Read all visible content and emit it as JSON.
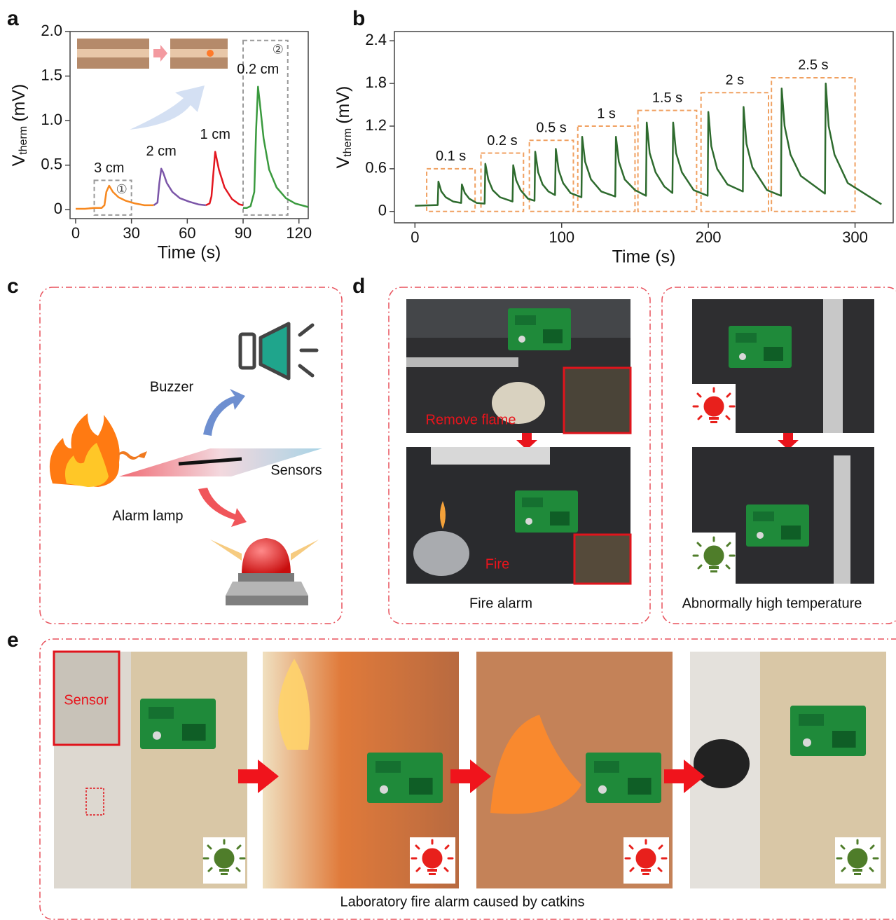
{
  "panel_labels": [
    "a",
    "b",
    "c",
    "d",
    "e"
  ],
  "chart_data": [
    {
      "type": "line",
      "xlabel": "Time (s)",
      "ylabel": {
        "main": "V",
        "sub": "therm",
        "unit": "(mV)"
      },
      "xlim": [
        -3,
        125
      ],
      "ylim": [
        -0.1,
        2.0
      ],
      "xticks": [
        0,
        30,
        60,
        90,
        120
      ],
      "yticks": [
        0,
        0.5,
        {
          "value": 1,
          "label": "1.0"
        },
        1.5,
        {
          "value": 2,
          "label": "2.0"
        }
      ],
      "series": [
        {
          "name": "3 cm",
          "color": "#f7881f",
          "x": [
            0,
            5,
            10,
            14,
            15.5,
            16.5,
            18,
            20,
            23,
            27,
            32,
            37,
            42
          ],
          "values": [
            0.01,
            0.01,
            0.02,
            0.02,
            0.05,
            0.2,
            0.27,
            0.2,
            0.14,
            0.1,
            0.07,
            0.05,
            0.05
          ]
        },
        {
          "name": "2 cm",
          "color": "#7b55a8",
          "x": [
            42,
            44,
            45,
            46,
            47,
            49,
            52,
            56,
            61,
            66,
            70
          ],
          "values": [
            0.05,
            0.08,
            0.3,
            0.46,
            0.42,
            0.3,
            0.2,
            0.13,
            0.09,
            0.06,
            0.05
          ]
        },
        {
          "name": "1 cm",
          "color": "#e3161f",
          "x": [
            70,
            72,
            73,
            74,
            75,
            77,
            80,
            84,
            88,
            90
          ],
          "values": [
            0.05,
            0.07,
            0.15,
            0.4,
            0.65,
            0.45,
            0.25,
            0.12,
            0.06,
            0.05
          ]
        },
        {
          "name": "0.2 cm",
          "color": "#3a9a3e",
          "x": [
            90,
            92,
            94,
            96,
            97,
            98,
            99,
            101,
            104,
            108,
            113,
            118,
            125
          ],
          "values": [
            0.02,
            0.02,
            0.04,
            0.2,
            0.9,
            1.38,
            1.2,
            0.8,
            0.45,
            0.25,
            0.13,
            0.07,
            0.03
          ]
        }
      ],
      "box_color": "#9a9a9a",
      "boxes": [
        {
          "label": "①",
          "x": [
            10,
            30
          ],
          "y": [
            -0.06,
            0.33
          ]
        },
        {
          "label": "②",
          "x": [
            90,
            114
          ],
          "y": [
            -0.06,
            1.9
          ]
        }
      ]
    },
    {
      "type": "line",
      "xlabel": "Time (s)",
      "ylabel": {
        "main": "V",
        "sub": "therm",
        "unit": "(mV)"
      },
      "xlim": [
        -14,
        326
      ],
      "ylim": [
        -0.16,
        2.53
      ],
      "xticks": [
        0,
        100,
        200,
        300
      ],
      "yticks": [
        0,
        0.6,
        1.2,
        1.8,
        2.4
      ],
      "series": [
        {
          "color": "#2e6b2e",
          "x": [
            0,
            15.5,
            16,
            18,
            21,
            26,
            31.5,
            32,
            34,
            37,
            42,
            47.5,
            48,
            50,
            53,
            58,
            66.5,
            67,
            69,
            72,
            77,
            81.5,
            82,
            84,
            87,
            91,
            95.5,
            96,
            98,
            101,
            106,
            113.5,
            114,
            116,
            120,
            127,
            136.5,
            137,
            139,
            143,
            150,
            157.5,
            158,
            160,
            164,
            170,
            175.5,
            176,
            178,
            182,
            190,
            199.5,
            200,
            202,
            206,
            213,
            223.5,
            224,
            226,
            230,
            240,
            249.5,
            250,
            252,
            256,
            263,
            279.5,
            280,
            282,
            286,
            295,
            318
          ],
          "values": [
            0.08,
            0.09,
            0.42,
            0.28,
            0.2,
            0.14,
            0.12,
            0.38,
            0.26,
            0.18,
            0.12,
            0.11,
            0.67,
            0.45,
            0.3,
            0.2,
            0.14,
            0.65,
            0.44,
            0.3,
            0.18,
            0.15,
            0.84,
            0.55,
            0.38,
            0.28,
            0.23,
            0.88,
            0.58,
            0.4,
            0.26,
            0.2,
            1.05,
            0.7,
            0.45,
            0.28,
            0.21,
            1.05,
            0.7,
            0.45,
            0.3,
            0.22,
            1.25,
            0.82,
            0.55,
            0.35,
            0.26,
            1.25,
            0.82,
            0.55,
            0.3,
            0.22,
            1.4,
            0.92,
            0.6,
            0.38,
            0.28,
            1.47,
            0.95,
            0.62,
            0.3,
            0.22,
            1.73,
            1.2,
            0.8,
            0.5,
            0.25,
            1.8,
            1.2,
            0.8,
            0.4,
            0.1
          ]
        }
      ],
      "box_color": "#f0a060",
      "boxes": [
        {
          "label": "0.1 s",
          "x": [
            8,
            41
          ],
          "y": [
            0,
            0.6
          ]
        },
        {
          "label": "0.2 s",
          "x": [
            45,
            74
          ],
          "y": [
            0,
            0.82
          ]
        },
        {
          "label": "0.5 s",
          "x": [
            78,
            108
          ],
          "y": [
            0,
            1.0
          ]
        },
        {
          "label": "1 s",
          "x": [
            111,
            150
          ],
          "y": [
            0,
            1.2
          ]
        },
        {
          "label": "1.5 s",
          "x": [
            152,
            192
          ],
          "y": [
            0,
            1.42
          ]
        },
        {
          "label": "2 s",
          "x": [
            195,
            241
          ],
          "y": [
            0,
            1.67
          ]
        },
        {
          "label": "2.5 s",
          "x": [
            243,
            300
          ],
          "y": [
            0,
            1.88
          ]
        }
      ]
    }
  ],
  "panel_c": {
    "labels": [
      "Buzzer",
      "Sensors",
      "Alarm lamp"
    ]
  },
  "panel_d": {
    "photo_labels": [
      "Remove flame",
      "Fire"
    ],
    "captions": [
      "Fire alarm",
      "Abnormally high temperature"
    ]
  },
  "panel_e": {
    "inset_label": "Sensor",
    "caption": "Laboratory fire alarm caused by catkins"
  }
}
